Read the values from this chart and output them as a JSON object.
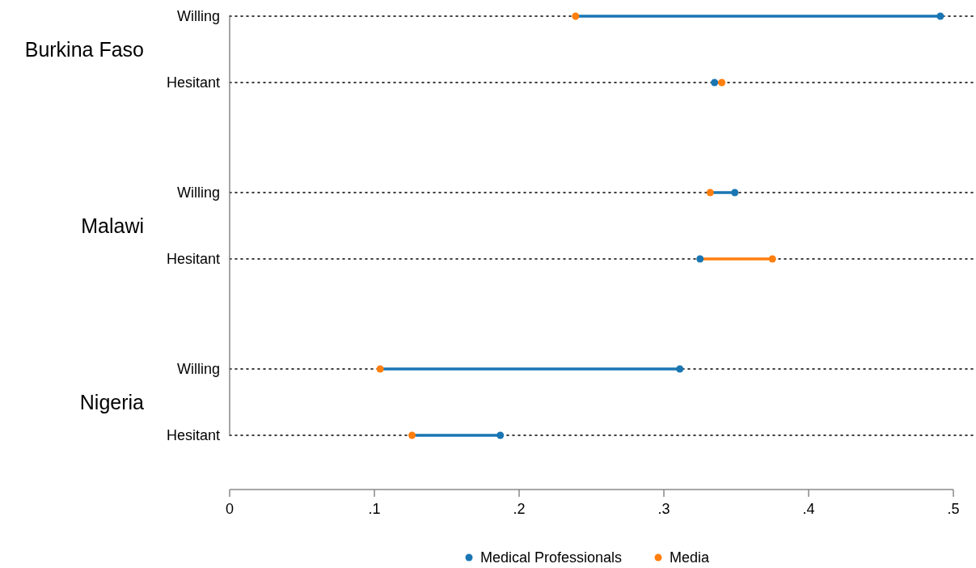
{
  "chart_data": {
    "type": "scatter",
    "orientation": "horizontal",
    "categories": [
      "Willing",
      "Hesitant",
      "Willing",
      "Hesitant",
      "Willing",
      "Hesitant"
    ],
    "annotations": [
      "Burkina Faso",
      "Malawi",
      "Nigeria"
    ],
    "series": [
      {
        "name": "Medical Professionals",
        "color": "#1a76b3",
        "values": [
          0.491,
          0.335,
          0.349,
          0.325,
          0.311,
          0.187
        ]
      },
      {
        "name": "Media",
        "color": "#ff7f0e",
        "values": [
          0.239,
          0.34,
          0.332,
          0.375,
          0.104,
          0.126
        ]
      }
    ],
    "xlim": [
      0,
      0.5
    ],
    "xticks": [
      0,
      {
        "value": 0.1,
        "label": ".1"
      },
      {
        "value": 0.2,
        "label": ".2"
      },
      {
        "value": 0.3,
        "label": ".3"
      },
      {
        "value": 0.4,
        "label": ".4"
      },
      {
        "value": 0.5,
        "label": ".5"
      }
    ],
    "grid": "y",
    "line_style": "dotted",
    "marker": "circle",
    "legend": "bottom"
  }
}
